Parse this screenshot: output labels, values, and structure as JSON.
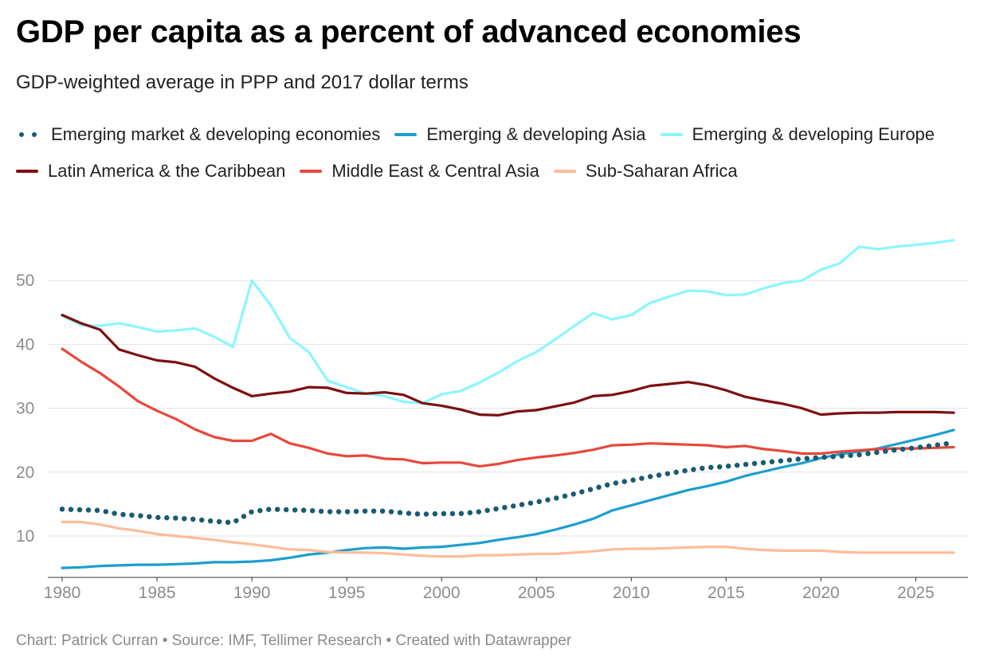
{
  "title": "GDP per capita as a percent of advanced economies",
  "subtitle": "GDP-weighted average in PPP and 2017 dollar terms",
  "footer": "Chart: Patrick Curran • Source: IMF, Tellimer Research • Created with Datawrapper",
  "chart_data": {
    "type": "line",
    "title": "GDP per capita as a percent of advanced economies",
    "subtitle": "GDP-weighted average in PPP and 2017 dollar terms",
    "xlabel": "",
    "ylabel": "",
    "xlim": [
      1980,
      2027
    ],
    "ylim": [
      5,
      57
    ],
    "x_ticks": [
      1980,
      1985,
      1990,
      1995,
      2000,
      2005,
      2010,
      2015,
      2020,
      2025
    ],
    "y_ticks": [
      10,
      20,
      30,
      40,
      50
    ],
    "grid": true,
    "legend_position": "top",
    "x": [
      1980,
      1981,
      1982,
      1983,
      1984,
      1985,
      1986,
      1987,
      1988,
      1989,
      1990,
      1991,
      1992,
      1993,
      1994,
      1995,
      1996,
      1997,
      1998,
      1999,
      2000,
      2001,
      2002,
      2003,
      2004,
      2005,
      2006,
      2007,
      2008,
      2009,
      2010,
      2011,
      2012,
      2013,
      2014,
      2015,
      2016,
      2017,
      2018,
      2019,
      2020,
      2021,
      2022,
      2023,
      2024,
      2025,
      2026,
      2027
    ],
    "series": [
      {
        "name": "Emerging market & developing economies",
        "color": "#1a5a73",
        "style": "dotted",
        "values": [
          14.2,
          14.1,
          14.0,
          13.4,
          13.2,
          12.9,
          12.8,
          12.6,
          12.3,
          12.1,
          13.8,
          14.2,
          14.1,
          14.0,
          13.8,
          13.8,
          13.9,
          13.9,
          13.6,
          13.4,
          13.5,
          13.5,
          13.8,
          14.3,
          14.8,
          15.3,
          15.9,
          16.6,
          17.4,
          18.2,
          18.7,
          19.3,
          19.8,
          20.3,
          20.7,
          20.9,
          21.2,
          21.5,
          21.8,
          22.1,
          22.3,
          22.5,
          22.7,
          23.1,
          23.5,
          23.8,
          24.2,
          24.6
        ]
      },
      {
        "name": "Emerging & developing Asia",
        "color": "#1a9ecf",
        "style": "solid",
        "values": [
          5.0,
          5.1,
          5.3,
          5.4,
          5.5,
          5.5,
          5.6,
          5.7,
          5.9,
          5.9,
          6.0,
          6.2,
          6.6,
          7.1,
          7.4,
          7.8,
          8.1,
          8.2,
          8.0,
          8.2,
          8.3,
          8.6,
          8.9,
          9.4,
          9.8,
          10.3,
          11.0,
          11.8,
          12.7,
          14.0,
          14.8,
          15.6,
          16.4,
          17.2,
          17.8,
          18.5,
          19.4,
          20.1,
          20.8,
          21.4,
          22.2,
          22.8,
          23.2,
          23.7,
          24.4,
          25.1,
          25.8,
          26.6
        ]
      },
      {
        "name": "Emerging & developing Europe",
        "color": "#8bf6ff",
        "style": "solid",
        "values": [
          44.5,
          43.0,
          42.9,
          43.3,
          42.7,
          42.0,
          42.2,
          42.5,
          41.2,
          39.6,
          50.0,
          46.1,
          41.0,
          38.8,
          34.3,
          33.3,
          32.3,
          31.9,
          31.0,
          30.8,
          32.2,
          32.7,
          34.0,
          35.6,
          37.4,
          38.8,
          40.8,
          42.9,
          44.9,
          43.9,
          44.6,
          46.5,
          47.5,
          48.4,
          48.3,
          47.7,
          47.8,
          48.8,
          49.6,
          50.0,
          51.7,
          52.7,
          55.3,
          54.9,
          55.3,
          55.6,
          55.9,
          56.3
        ]
      },
      {
        "name": "Latin America & the Caribbean",
        "color": "#7d0f0f",
        "style": "solid",
        "values": [
          44.6,
          43.3,
          42.3,
          39.2,
          38.3,
          37.5,
          37.2,
          36.5,
          34.7,
          33.2,
          31.9,
          32.3,
          32.6,
          33.3,
          33.2,
          32.4,
          32.3,
          32.5,
          32.1,
          30.8,
          30.4,
          29.8,
          29.0,
          28.9,
          29.5,
          29.7,
          30.3,
          30.9,
          31.9,
          32.1,
          32.7,
          33.5,
          33.8,
          34.1,
          33.6,
          32.8,
          31.8,
          31.2,
          30.7,
          30.0,
          29.0,
          29.2,
          29.3,
          29.3,
          29.4,
          29.4,
          29.4,
          29.3
        ]
      },
      {
        "name": "Middle East & Central Asia",
        "color": "#e8473c",
        "style": "solid",
        "values": [
          39.3,
          37.3,
          35.5,
          33.4,
          31.1,
          29.6,
          28.3,
          26.7,
          25.5,
          24.9,
          24.9,
          26.0,
          24.5,
          23.8,
          22.9,
          22.5,
          22.6,
          22.1,
          22.0,
          21.4,
          21.5,
          21.5,
          20.9,
          21.3,
          21.9,
          22.3,
          22.6,
          23.0,
          23.5,
          24.2,
          24.3,
          24.5,
          24.4,
          24.3,
          24.2,
          23.9,
          24.1,
          23.6,
          23.3,
          22.9,
          22.9,
          23.2,
          23.4,
          23.6,
          23.7,
          23.7,
          23.8,
          23.9
        ]
      },
      {
        "name": "Sub-Saharan Africa",
        "color": "#fdbc9a",
        "style": "solid",
        "values": [
          12.2,
          12.2,
          11.8,
          11.2,
          10.8,
          10.3,
          10.0,
          9.7,
          9.4,
          9.0,
          8.7,
          8.3,
          7.9,
          7.8,
          7.5,
          7.4,
          7.4,
          7.3,
          7.1,
          6.9,
          6.8,
          6.8,
          7.0,
          7.0,
          7.1,
          7.2,
          7.2,
          7.4,
          7.6,
          7.9,
          8.0,
          8.0,
          8.1,
          8.2,
          8.3,
          8.3,
          8.0,
          7.8,
          7.7,
          7.7,
          7.7,
          7.5,
          7.4,
          7.4,
          7.4,
          7.4,
          7.4,
          7.4
        ]
      }
    ]
  }
}
